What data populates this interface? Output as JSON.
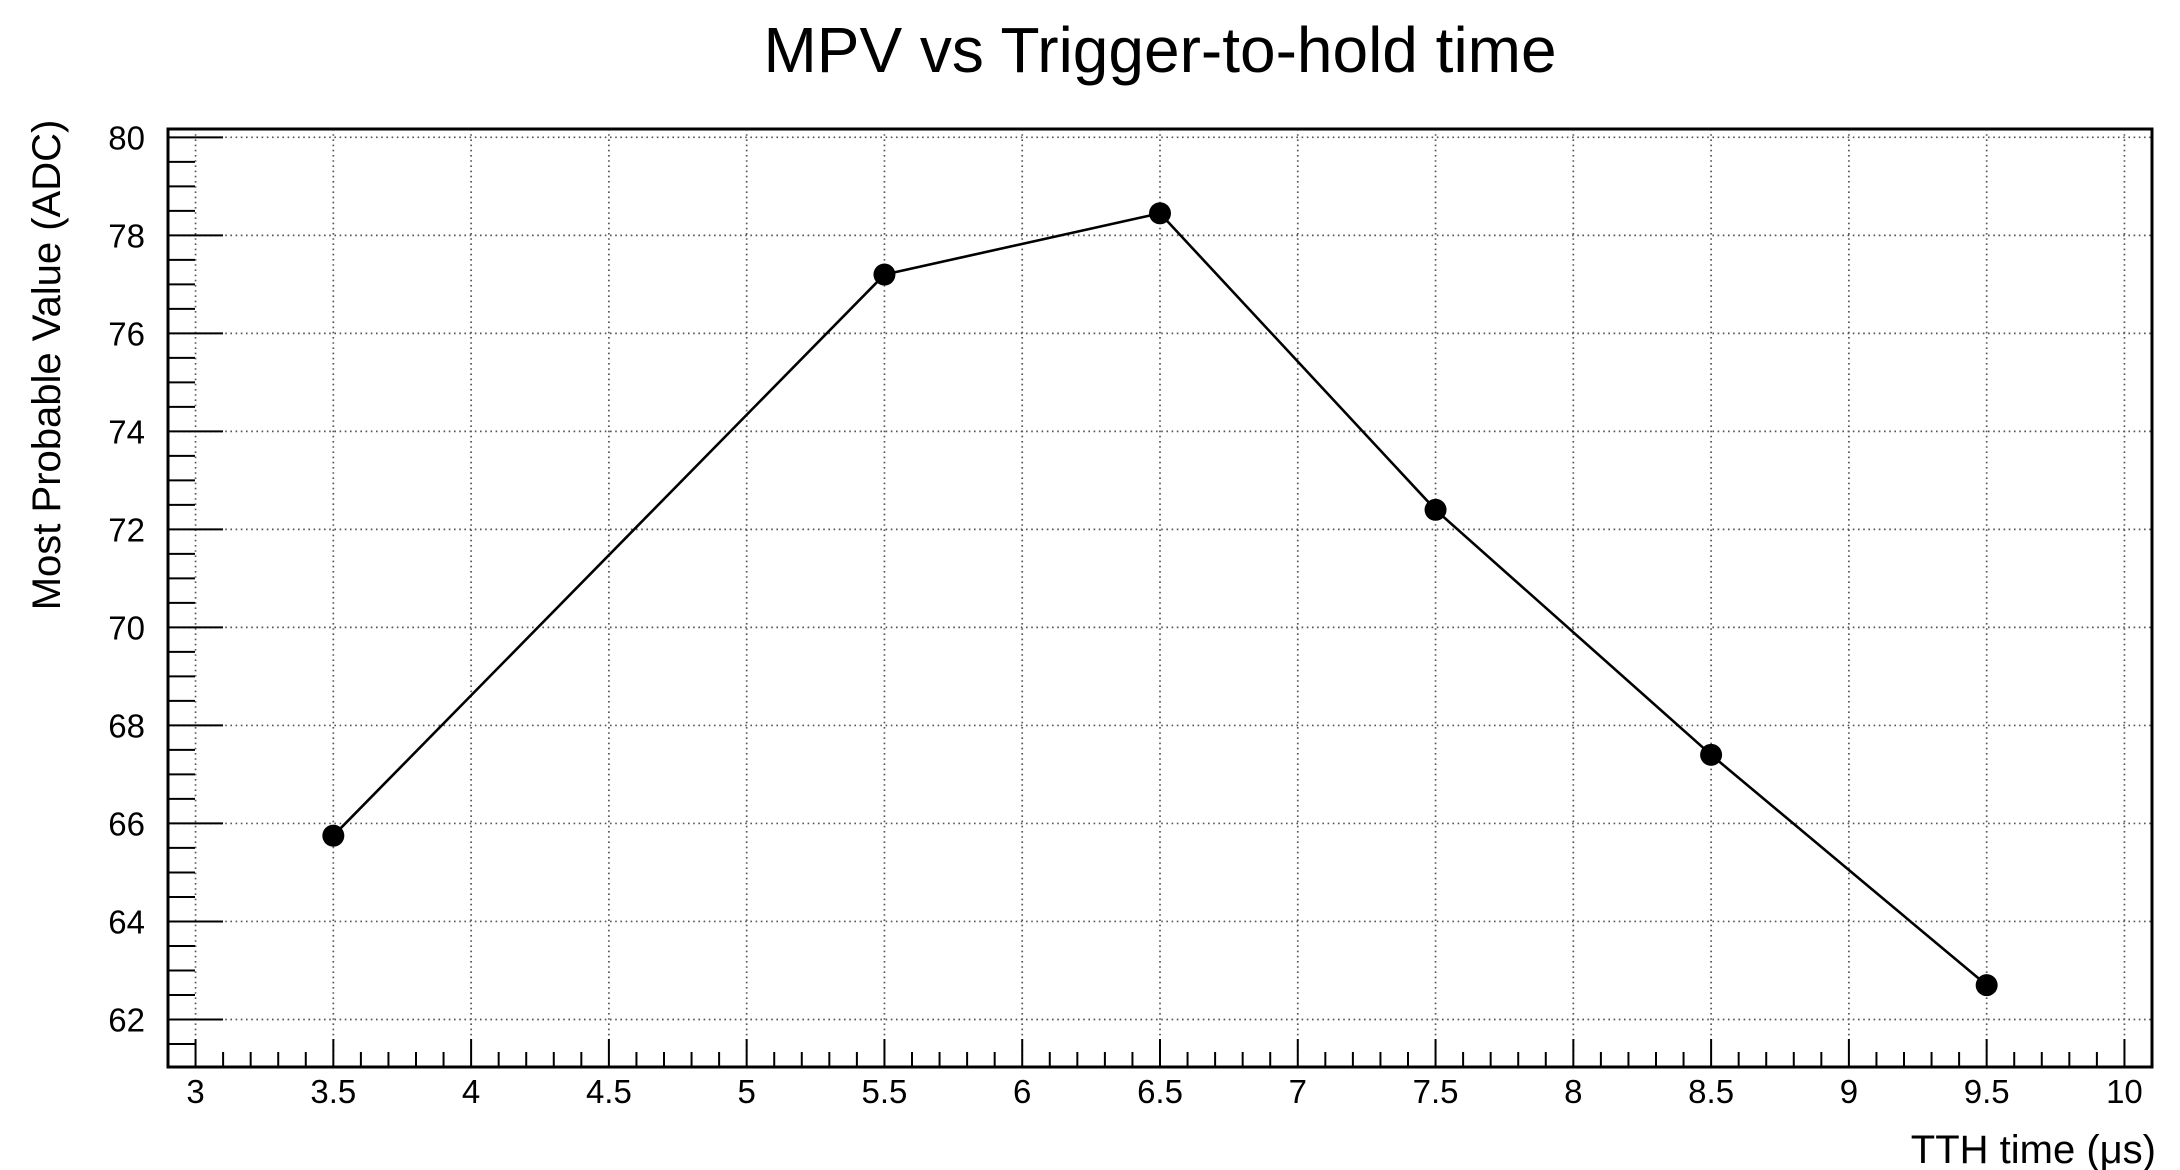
{
  "chart_data": {
    "type": "line",
    "title": "MPV vs Trigger-to-hold time",
    "xlabel": "TTH time (μs)",
    "ylabel": "Most Probable Value (ADC)",
    "x": [
      3.5,
      5.5,
      6.5,
      7.5,
      8.5,
      9.5
    ],
    "y": [
      65.75,
      77.2,
      78.45,
      72.4,
      67.4,
      62.7
    ],
    "xlim": [
      2.9,
      10.1
    ],
    "ylim": [
      61.03,
      80.17
    ],
    "x_major_ticks": [
      3,
      3.5,
      4,
      4.5,
      5,
      5.5,
      6,
      6.5,
      7,
      7.5,
      8,
      8.5,
      9,
      9.5,
      10
    ],
    "x_tick_labels": [
      "3",
      "3.5",
      "4",
      "4.5",
      "5",
      "5.5",
      "6",
      "6.5",
      "7",
      "7.5",
      "8",
      "8.5",
      "9",
      "9.5",
      "10"
    ],
    "x_minor_step": 0.1,
    "y_major_ticks": [
      62,
      64,
      66,
      68,
      70,
      72,
      74,
      76,
      78,
      80
    ],
    "y_tick_labels": [
      "62",
      "64",
      "66",
      "68",
      "70",
      "72",
      "74",
      "76",
      "78",
      "80"
    ],
    "y_minor_step": 0.5,
    "grid": "dotted-on-major-ticks",
    "legend": "none",
    "marker_style": "filled-circle",
    "colors": {
      "line": "#000000",
      "marker": "#000000",
      "grid": "#555555",
      "frame": "#000000",
      "text": "#000000",
      "background": "#ffffff"
    }
  }
}
